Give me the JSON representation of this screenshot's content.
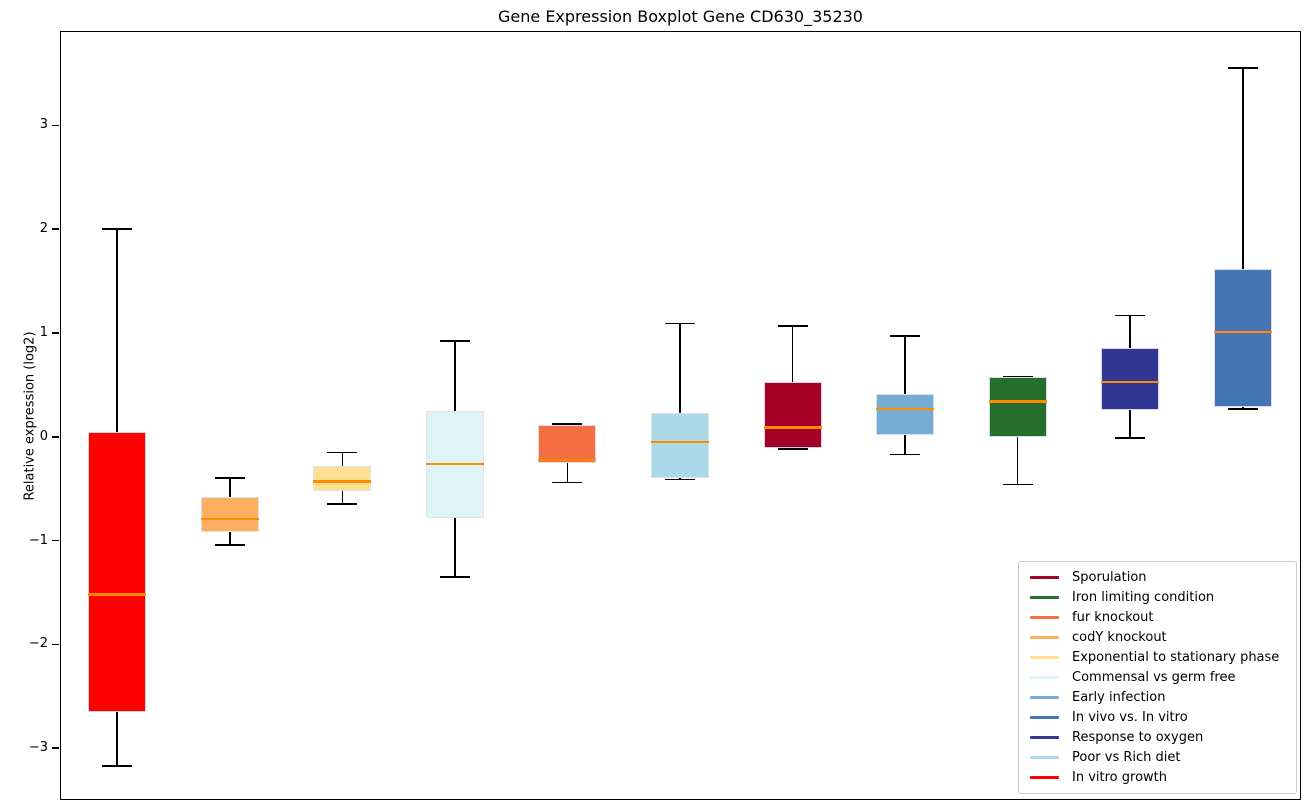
{
  "chart_data": {
    "type": "boxplot",
    "title": "Gene Expression Boxplot Gene CD630_35230",
    "ylabel": "Relative expression (log2)",
    "ylim": [
      -3.48,
      3.9
    ],
    "yticks": [
      3,
      2,
      1,
      0,
      -1,
      -2,
      -3
    ],
    "grid": false,
    "x_axis_labels": "none",
    "median_color": "#ff8c00",
    "whisker_color": "#000000",
    "legend_position": "lower right",
    "series": [
      {
        "name": "In vitro growth",
        "color": "#ff0000",
        "whisker_low": -3.17,
        "q1": -2.65,
        "median": -1.52,
        "q3": 0.05,
        "whisker_high": 2.0
      },
      {
        "name": "codY knockout",
        "color": "#fdae61",
        "whisker_low": -1.04,
        "q1": -0.92,
        "median": -0.79,
        "q3": -0.58,
        "whisker_high": -0.4
      },
      {
        "name": "Exponential to stationary phase",
        "color": "#fee090",
        "whisker_low": -0.65,
        "q1": -0.52,
        "median": -0.43,
        "q3": -0.28,
        "whisker_high": -0.15
      },
      {
        "name": "Commensal vs germ free",
        "color": "#e0f3f8",
        "whisker_low": -1.35,
        "q1": -0.78,
        "median": -0.26,
        "q3": 0.25,
        "whisker_high": 0.92
      },
      {
        "name": "fur knockout",
        "color": "#f46d43",
        "whisker_low": -0.44,
        "q1": -0.25,
        "median": -0.22,
        "q3": 0.11,
        "whisker_high": 0.12
      },
      {
        "name": "Poor vs Rich diet",
        "color": "#abd9e9",
        "whisker_low": -0.41,
        "q1": -0.4,
        "median": -0.05,
        "q3": 0.23,
        "whisker_high": 1.09
      },
      {
        "name": "Sporulation",
        "color": "#a50026",
        "whisker_low": -0.12,
        "q1": -0.11,
        "median": 0.09,
        "q3": 0.53,
        "whisker_high": 1.07
      },
      {
        "name": "Early infection",
        "color": "#74add1",
        "whisker_low": -0.17,
        "q1": 0.02,
        "median": 0.27,
        "q3": 0.41,
        "whisker_high": 0.97
      },
      {
        "name": "Iron limiting condition",
        "color": "#276e2c",
        "whisker_low": -0.46,
        "q1": 0.0,
        "median": 0.34,
        "q3": 0.58,
        "whisker_high": 0.58
      },
      {
        "name": "Response to oxygen",
        "color": "#313695",
        "whisker_low": -0.01,
        "q1": 0.26,
        "median": 0.53,
        "q3": 0.86,
        "whisker_high": 1.17
      },
      {
        "name": "In vivo vs. In vitro",
        "color": "#4575b4",
        "whisker_low": 0.27,
        "q1": 0.29,
        "median": 1.01,
        "q3": 1.62,
        "whisker_high": 3.55
      }
    ],
    "legend": [
      {
        "label": "Sporulation",
        "color": "#a50026"
      },
      {
        "label": "Iron limiting condition",
        "color": "#276e2c"
      },
      {
        "label": "fur knockout",
        "color": "#f46d43"
      },
      {
        "label": "codY knockout",
        "color": "#fdae61"
      },
      {
        "label": "Exponential to stationary phase",
        "color": "#fee090"
      },
      {
        "label": "Commensal vs germ free",
        "color": "#e0f3f8"
      },
      {
        "label": "Early infection",
        "color": "#74add1"
      },
      {
        "label": "In vivo vs. In vitro",
        "color": "#4575b4"
      },
      {
        "label": "Response to oxygen",
        "color": "#313695"
      },
      {
        "label": "Poor vs Rich diet",
        "color": "#abd9e9"
      },
      {
        "label": "In vitro growth",
        "color": "#ff0000"
      }
    ]
  }
}
